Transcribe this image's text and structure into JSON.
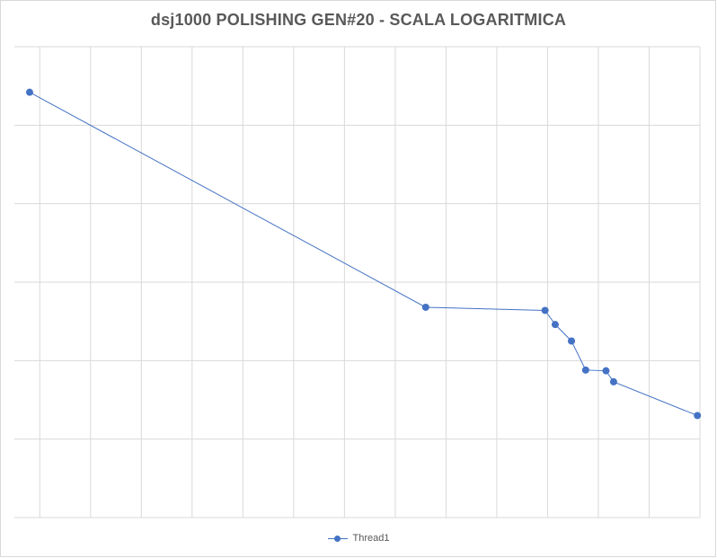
{
  "chart_data": {
    "type": "line",
    "title": "dsj1000 POLISHING GEN#20 - SCALA LOGARITMICA",
    "xlabel": "",
    "ylabel": "",
    "x_axis_labels_shown": false,
    "y_axis_labels_shown": false,
    "grid": true,
    "legend_position": "bottom",
    "xlim": [
      0,
      13.5
    ],
    "ylim": [
      0,
      6
    ],
    "series": [
      {
        "name": "Thread1",
        "color": "#4472c4",
        "x": [
          0.3,
          8.1,
          10.45,
          10.65,
          10.97,
          11.25,
          11.65,
          11.8,
          13.45
        ],
        "y": [
          5.42,
          2.68,
          2.64,
          2.46,
          2.25,
          1.88,
          1.87,
          1.73,
          1.3
        ]
      }
    ]
  },
  "colors": {
    "gridline": "#d9d9d9",
    "title": "#595959",
    "legend_text": "#595959"
  }
}
